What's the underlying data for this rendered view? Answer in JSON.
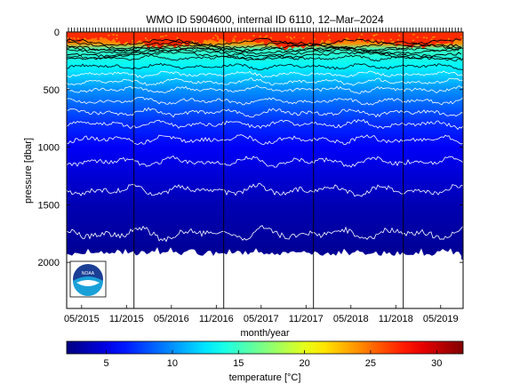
{
  "chart_data": {
    "type": "heatmap",
    "title": "WMO ID 5904600, internal ID 6110, 12–Mar–2024",
    "xlabel": "month/year",
    "ylabel": "pressure [dbar]",
    "x_ticks": [
      "05/2015",
      "11/2015",
      "05/2016",
      "11/2016",
      "05/2017",
      "11/2017",
      "05/2018",
      "11/2018",
      "05/2019"
    ],
    "xlim": [
      "2015-03",
      "2019-08"
    ],
    "y_ticks": [
      0,
      500,
      1000,
      1500,
      2000
    ],
    "ylim": [
      0,
      2400
    ],
    "y_reversed": true,
    "profile_bottom_dbar": 1975,
    "surface_mixed_layer_dbar": [
      0,
      110
    ],
    "isotherm_spacing_degC": 1,
    "vertical_markers": [
      "2015-12",
      "2016-12",
      "2017-12",
      "2018-12"
    ],
    "temperature_by_pressure": [
      {
        "pressure": 0,
        "temperature": 26
      },
      {
        "pressure": 100,
        "temperature": 24
      },
      {
        "pressure": 150,
        "temperature": 15
      },
      {
        "pressure": 300,
        "temperature": 13
      },
      {
        "pressure": 500,
        "temperature": 10
      },
      {
        "pressure": 800,
        "temperature": 7
      },
      {
        "pressure": 1000,
        "temperature": 5.5
      },
      {
        "pressure": 1500,
        "temperature": 3.5
      },
      {
        "pressure": 2000,
        "temperature": 2.5
      }
    ],
    "colorbar": {
      "label": "temperature [°C]",
      "range": [
        2,
        32
      ],
      "ticks": [
        5,
        10,
        15,
        20,
        25,
        30
      ],
      "colormap": "jet"
    },
    "grid": false,
    "logo_text": "NOAA"
  }
}
